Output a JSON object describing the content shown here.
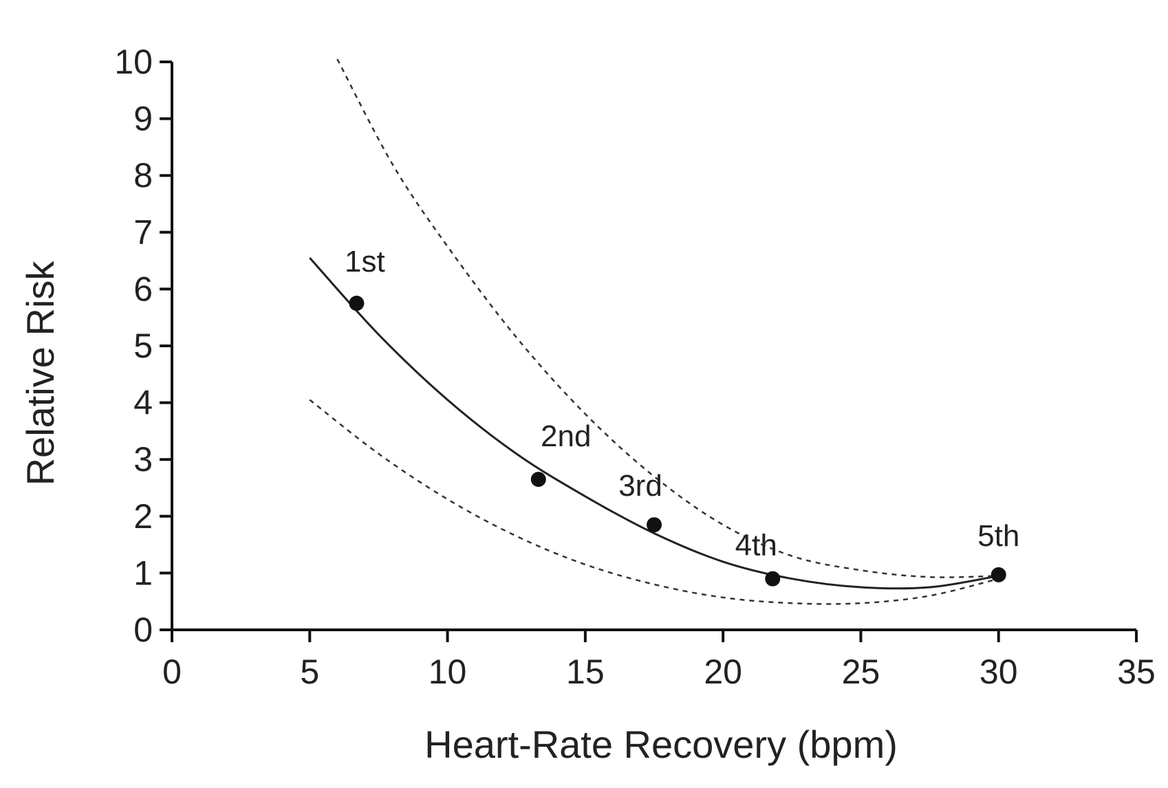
{
  "chart_data": {
    "type": "scatter",
    "xlabel": "Heart-Rate Recovery (bpm)",
    "ylabel": "Relative Risk",
    "xlim": [
      0,
      35
    ],
    "ylim": [
      0,
      10
    ],
    "xticks": [
      0,
      5,
      10,
      15,
      20,
      25,
      30,
      35
    ],
    "yticks": [
      0,
      1,
      2,
      3,
      4,
      5,
      6,
      7,
      8,
      9,
      10
    ],
    "grid": false,
    "points": [
      {
        "label": "1st",
        "x": 6.7,
        "y": 5.75
      },
      {
        "label": "2nd",
        "x": 13.3,
        "y": 2.65
      },
      {
        "label": "3rd",
        "x": 17.5,
        "y": 1.85
      },
      {
        "label": "4th",
        "x": 21.8,
        "y": 0.9
      },
      {
        "label": "5th",
        "x": 30.0,
        "y": 0.97
      }
    ],
    "series": [
      {
        "style": "solid",
        "x": [
          5,
          7.5,
          10,
          12.5,
          15,
          17.5,
          20,
          22.5,
          25,
          27.5,
          30
        ],
        "y": [
          6.55,
          5.2,
          4.05,
          3.1,
          2.35,
          1.7,
          1.2,
          0.9,
          0.75,
          0.75,
          0.95
        ]
      },
      {
        "style": "dashed",
        "x": [
          6,
          8,
          10,
          12.5,
          15,
          17.5,
          20,
          22.5,
          25,
          27.5,
          30
        ],
        "y": [
          10.05,
          8.2,
          6.75,
          5.15,
          3.8,
          2.7,
          1.85,
          1.3,
          1.05,
          0.93,
          0.95
        ]
      },
      {
        "style": "dashed",
        "x": [
          5,
          7.5,
          10,
          12.5,
          15,
          17.5,
          20,
          22.5,
          25,
          27.5,
          30
        ],
        "y": [
          4.05,
          3.1,
          2.3,
          1.65,
          1.15,
          0.8,
          0.57,
          0.47,
          0.47,
          0.6,
          0.9
        ]
      }
    ]
  }
}
